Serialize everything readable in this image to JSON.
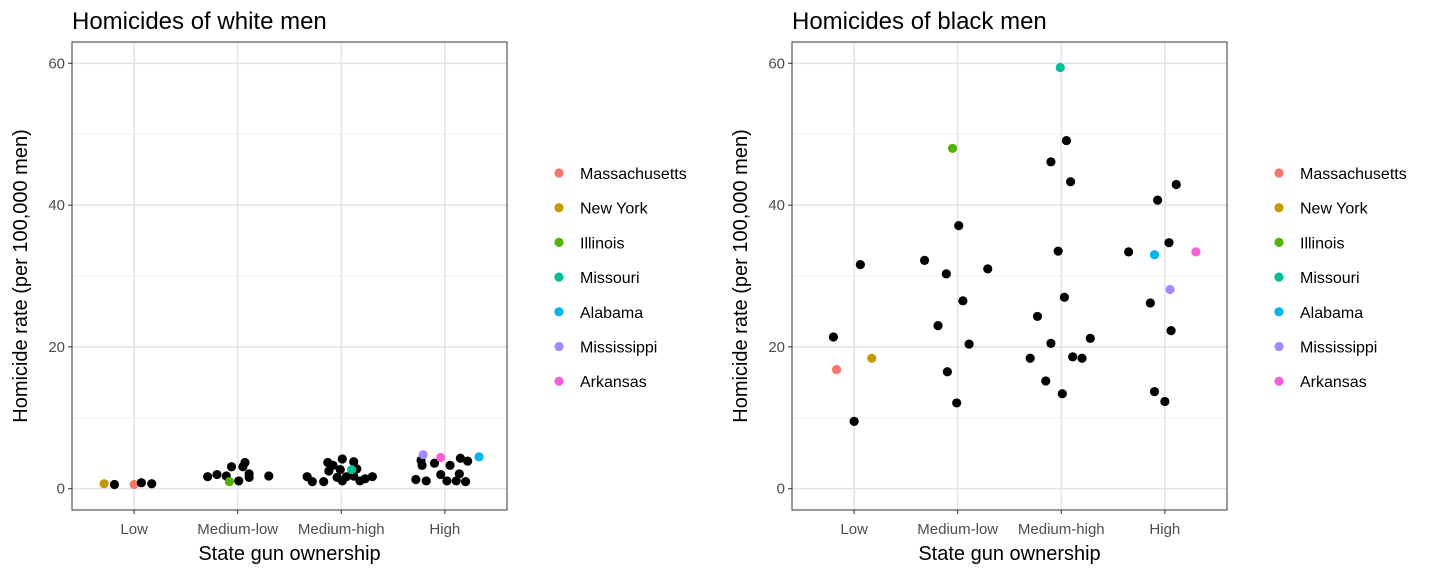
{
  "legend_title": "",
  "states": [
    {
      "name": "Massachusetts",
      "color": "#F8766D"
    },
    {
      "name": "New York",
      "color": "#C49A00"
    },
    {
      "name": "Illinois",
      "color": "#53B400"
    },
    {
      "name": "Missouri",
      "color": "#00C094"
    },
    {
      "name": "Alabama",
      "color": "#00B6EB"
    },
    {
      "name": "Mississippi",
      "color": "#A58AFF"
    },
    {
      "name": "Arkansas",
      "color": "#FB61D7"
    }
  ],
  "chart_data": [
    {
      "type": "scatter",
      "title": "Homicides of white men",
      "xlabel": "State gun ownership",
      "ylabel": "Homicide rate (per 100,000 men)",
      "categories": [
        "Low",
        "Medium-low",
        "Medium-high",
        "High"
      ],
      "yticks": [
        0,
        20,
        40,
        60
      ],
      "ylim": [
        -3,
        63
      ],
      "xlim": [
        0.4,
        4.6
      ],
      "grid": true,
      "legend": "right",
      "points": [
        {
          "x": 0.71,
          "y": 0.7,
          "state": "New York"
        },
        {
          "x": 0.81,
          "y": 0.6
        },
        {
          "x": 1.0,
          "y": 0.6,
          "state": "Massachusetts"
        },
        {
          "x": 1.07,
          "y": 0.85
        },
        {
          "x": 1.17,
          "y": 0.7
        },
        {
          "x": 1.71,
          "y": 1.7
        },
        {
          "x": 1.8,
          "y": 2.0
        },
        {
          "x": 1.89,
          "y": 1.8
        },
        {
          "x": 1.94,
          "y": 3.1
        },
        {
          "x": 2.05,
          "y": 3.1
        },
        {
          "x": 2.07,
          "y": 3.7
        },
        {
          "x": 2.01,
          "y": 1.1
        },
        {
          "x": 2.11,
          "y": 1.6
        },
        {
          "x": 2.11,
          "y": 2.1
        },
        {
          "x": 2.3,
          "y": 1.8
        },
        {
          "x": 1.92,
          "y": 1.0,
          "state": "Illinois"
        },
        {
          "x": 2.67,
          "y": 1.7
        },
        {
          "x": 2.72,
          "y": 1.0
        },
        {
          "x": 2.83,
          "y": 1.0
        },
        {
          "x": 2.88,
          "y": 2.5
        },
        {
          "x": 2.87,
          "y": 3.7
        },
        {
          "x": 2.92,
          "y": 3.3
        },
        {
          "x": 2.96,
          "y": 1.6
        },
        {
          "x": 3.01,
          "y": 1.1
        },
        {
          "x": 3.01,
          "y": 4.2
        },
        {
          "x": 2.99,
          "y": 2.7
        },
        {
          "x": 3.05,
          "y": 1.7
        },
        {
          "x": 3.12,
          "y": 1.8
        },
        {
          "x": 3.12,
          "y": 3.8
        },
        {
          "x": 3.15,
          "y": 2.8
        },
        {
          "x": 3.18,
          "y": 1.1
        },
        {
          "x": 3.3,
          "y": 1.7
        },
        {
          "x": 3.23,
          "y": 1.4
        },
        {
          "x": 3.1,
          "y": 2.7,
          "state": "Missouri"
        },
        {
          "x": 3.77,
          "y": 4.0
        },
        {
          "x": 3.78,
          "y": 3.3
        },
        {
          "x": 3.9,
          "y": 3.6
        },
        {
          "x": 3.72,
          "y": 1.3
        },
        {
          "x": 3.82,
          "y": 1.1
        },
        {
          "x": 3.96,
          "y": 2.0
        },
        {
          "x": 4.05,
          "y": 3.3
        },
        {
          "x": 4.02,
          "y": 1.1
        },
        {
          "x": 4.15,
          "y": 4.3
        },
        {
          "x": 4.22,
          "y": 3.9
        },
        {
          "x": 4.11,
          "y": 1.1
        },
        {
          "x": 4.14,
          "y": 2.1
        },
        {
          "x": 4.2,
          "y": 1.0
        },
        {
          "x": 3.79,
          "y": 4.8,
          "state": "Mississippi"
        },
        {
          "x": 3.96,
          "y": 4.4,
          "state": "Arkansas"
        },
        {
          "x": 4.33,
          "y": 4.5,
          "state": "Alabama"
        }
      ]
    },
    {
      "type": "scatter",
      "title": "Homicides of black men",
      "xlabel": "State gun ownership",
      "ylabel": "Homicide rate (per 100,000 men)",
      "categories": [
        "Low",
        "Medium-low",
        "Medium-high",
        "High"
      ],
      "yticks": [
        0,
        20,
        40,
        60
      ],
      "ylim": [
        -3,
        63
      ],
      "xlim": [
        0.4,
        4.6
      ],
      "grid": true,
      "legend": "right",
      "points": [
        {
          "x": 0.8,
          "y": 21.4
        },
        {
          "x": 1.06,
          "y": 31.6
        },
        {
          "x": 0.83,
          "y": 16.8,
          "state": "Massachusetts"
        },
        {
          "x": 1.17,
          "y": 18.4,
          "state": "New York"
        },
        {
          "x": 1.0,
          "y": 9.5
        },
        {
          "x": 1.95,
          "y": 48.0,
          "state": "Illinois"
        },
        {
          "x": 2.01,
          "y": 37.1
        },
        {
          "x": 1.68,
          "y": 32.2
        },
        {
          "x": 1.89,
          "y": 30.3
        },
        {
          "x": 2.29,
          "y": 31.0
        },
        {
          "x": 2.05,
          "y": 26.5
        },
        {
          "x": 1.81,
          "y": 23.0
        },
        {
          "x": 2.11,
          "y": 20.4
        },
        {
          "x": 1.9,
          "y": 16.5
        },
        {
          "x": 1.99,
          "y": 12.1
        },
        {
          "x": 2.99,
          "y": 59.4,
          "state": "Missouri"
        },
        {
          "x": 3.05,
          "y": 49.1
        },
        {
          "x": 2.9,
          "y": 46.1
        },
        {
          "x": 3.09,
          "y": 43.3
        },
        {
          "x": 2.97,
          "y": 33.5
        },
        {
          "x": 3.03,
          "y": 27.0
        },
        {
          "x": 2.77,
          "y": 24.3
        },
        {
          "x": 2.9,
          "y": 20.5
        },
        {
          "x": 3.28,
          "y": 21.2
        },
        {
          "x": 2.7,
          "y": 18.4
        },
        {
          "x": 3.11,
          "y": 18.6
        },
        {
          "x": 3.2,
          "y": 18.4
        },
        {
          "x": 2.85,
          "y": 15.2
        },
        {
          "x": 3.01,
          "y": 13.4
        },
        {
          "x": 3.93,
          "y": 40.7
        },
        {
          "x": 4.11,
          "y": 42.9
        },
        {
          "x": 3.65,
          "y": 33.4
        },
        {
          "x": 3.9,
          "y": 33.0,
          "state": "Alabama"
        },
        {
          "x": 4.04,
          "y": 34.7
        },
        {
          "x": 4.3,
          "y": 33.4,
          "state": "Arkansas"
        },
        {
          "x": 4.05,
          "y": 28.1,
          "state": "Mississippi"
        },
        {
          "x": 3.86,
          "y": 26.2
        },
        {
          "x": 4.06,
          "y": 22.3
        },
        {
          "x": 3.9,
          "y": 13.7
        },
        {
          "x": 4.0,
          "y": 12.3
        }
      ]
    }
  ]
}
